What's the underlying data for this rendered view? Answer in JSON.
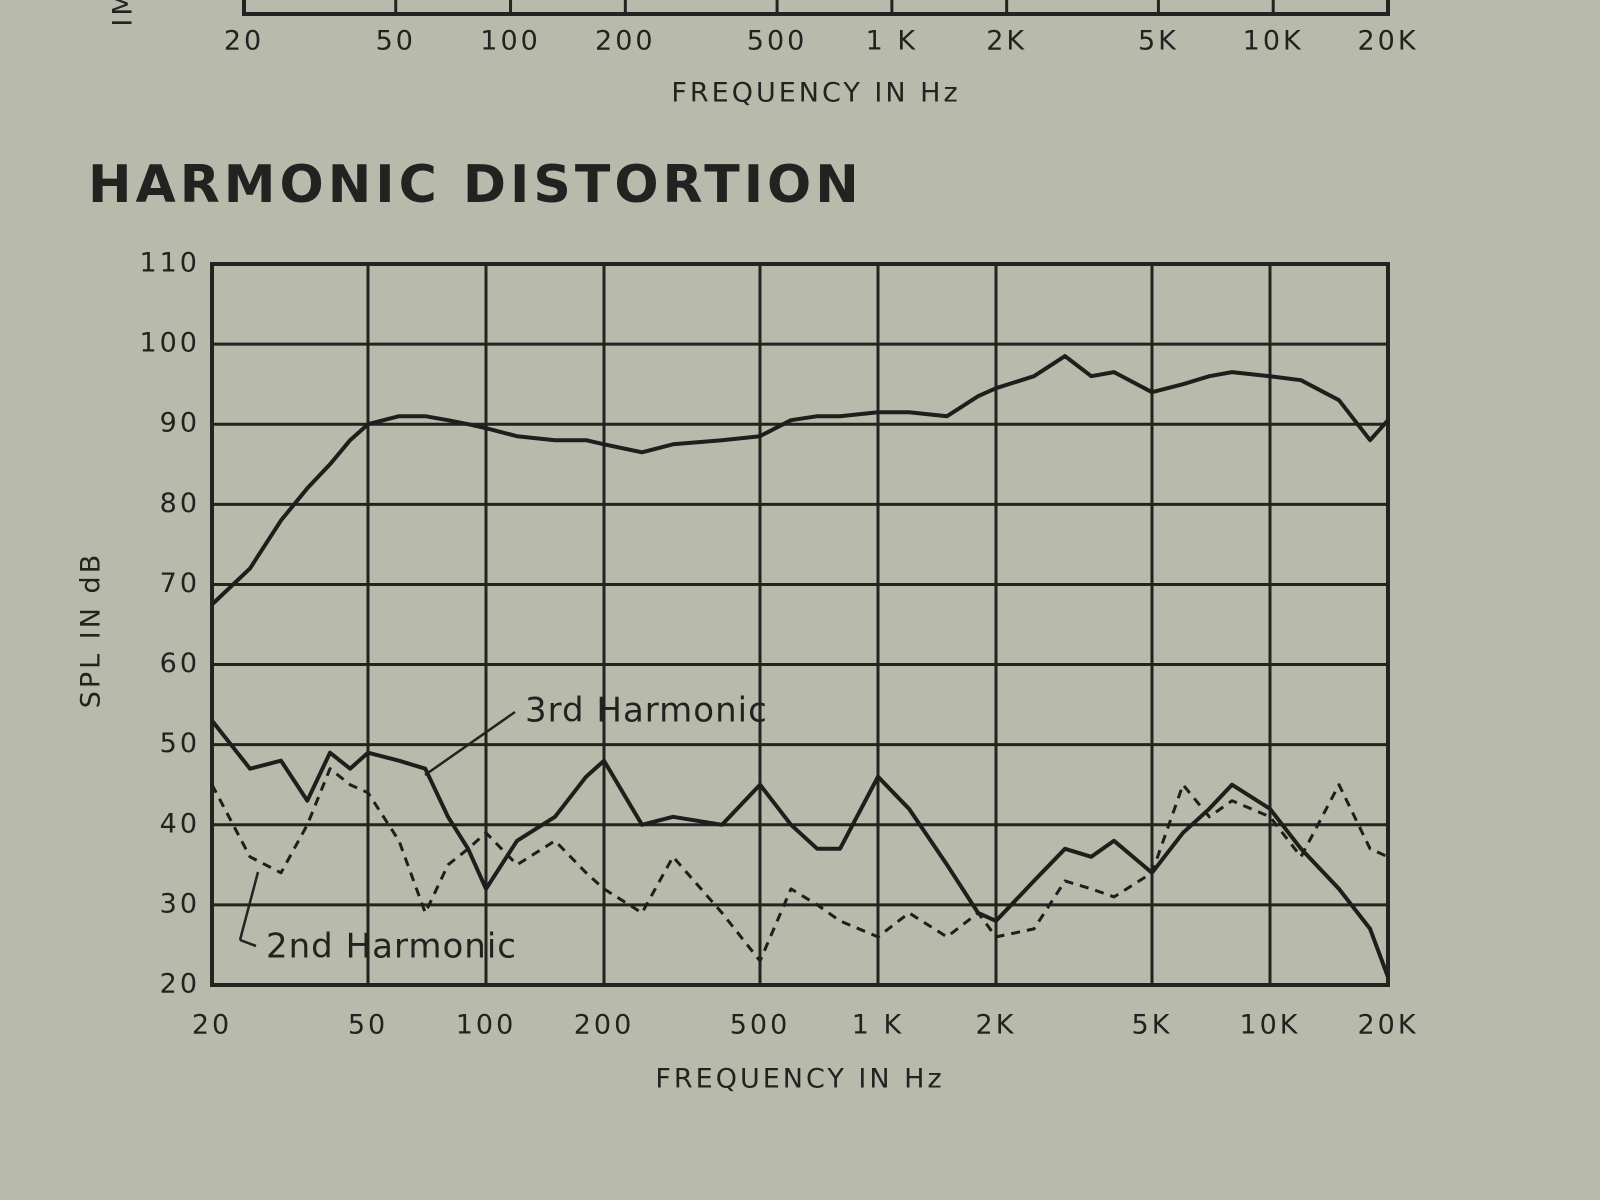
{
  "chart_data": [
    {
      "type": "line",
      "x_label": "FREQUENCY IN Hz",
      "y_label": "IM",
      "log_x": true,
      "grid": true,
      "xlim": [
        20,
        20000
      ],
      "xticks": [
        20,
        50,
        100,
        200,
        500,
        {
          "value": 1000,
          "label": "1 K"
        },
        {
          "value": 2000,
          "label": "2K"
        },
        {
          "value": 5000,
          "label": "5K"
        },
        {
          "value": 10000,
          "label": "10K"
        },
        {
          "value": 20000,
          "label": "20K"
        }
      ]
    },
    {
      "type": "line",
      "title": "HARMONIC DISTORTION",
      "x_label": "FREQUENCY IN Hz",
      "y_label": "SPL IN dB",
      "log_x": true,
      "grid": true,
      "xlim": [
        20,
        20000
      ],
      "ylim": [
        20,
        110
      ],
      "xticks": [
        20,
        50,
        100,
        200,
        500,
        {
          "value": 1000,
          "label": "1 K"
        },
        {
          "value": 2000,
          "label": "2K"
        },
        {
          "value": 5000,
          "label": "5K"
        },
        {
          "value": 10000,
          "label": "10K"
        },
        {
          "value": 20000,
          "label": "20K"
        }
      ],
      "yticks": [
        20,
        30,
        40,
        50,
        60,
        70,
        80,
        90,
        100,
        110
      ],
      "x": [
        20,
        25,
        30,
        35,
        40,
        45,
        50,
        60,
        70,
        80,
        90,
        100,
        120,
        150,
        180,
        200,
        250,
        300,
        400,
        500,
        600,
        700,
        800,
        1000,
        1200,
        1500,
        1800,
        2000,
        2500,
        3000,
        3500,
        4000,
        5000,
        6000,
        7000,
        8000,
        10000,
        12000,
        15000,
        18000,
        20000
      ],
      "series": [
        {
          "color": "#1e1e1c",
          "line_style": "solid",
          "values": [
            67.5,
            72,
            78,
            82,
            85,
            88,
            90,
            91,
            91,
            90.5,
            90,
            89.5,
            88.5,
            88,
            88,
            87.5,
            86.5,
            87.5,
            88,
            88.5,
            90.5,
            91,
            91,
            91.5,
            91.5,
            91,
            93.5,
            94.5,
            96,
            98.5,
            96,
            96.5,
            94,
            95,
            96,
            96.5,
            96,
            95.5,
            93,
            88,
            90.5
          ]
        },
        {
          "name": "3rd Harmonic",
          "color": "#1e1e1c",
          "line_style": "solid",
          "values": [
            53,
            47,
            48,
            43,
            49,
            47,
            49,
            48,
            47,
            41,
            37,
            32,
            38,
            41,
            46,
            48,
            40,
            41,
            40,
            45,
            40,
            37,
            37,
            46,
            42,
            35,
            29,
            28,
            33,
            37,
            36,
            38,
            34,
            39,
            42,
            45,
            42,
            37,
            32,
            27,
            21
          ]
        },
        {
          "name": "2nd Harmonic",
          "color": "#1e1e1c",
          "line_style": "dashed",
          "values": [
            45,
            36,
            34,
            40,
            47,
            45,
            44,
            38,
            29,
            35,
            37,
            39,
            35,
            38,
            34,
            32,
            29,
            36,
            29,
            23,
            32,
            30,
            28,
            26,
            29,
            26,
            29,
            26,
            27,
            33,
            32,
            31,
            34,
            45,
            41,
            43,
            41,
            36,
            45,
            37,
            36
          ]
        }
      ]
    }
  ]
}
